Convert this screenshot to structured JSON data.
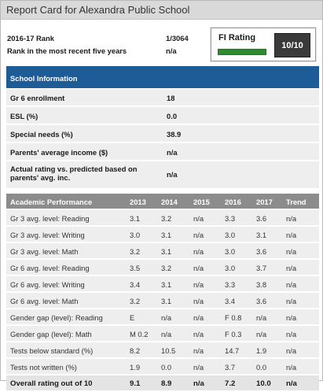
{
  "header": {
    "title": "Report Card for Alexandra Public School"
  },
  "rank": {
    "rank_label": "2016-17 Rank",
    "rank_value": "1/3064",
    "five_year_label": "Rank in the most recent five years",
    "five_year_value": "n/a"
  },
  "fi_rating": {
    "label": "FI Rating",
    "score": "10/10",
    "level": 1.0,
    "bar_color": "#2d8c2d"
  },
  "school_info": {
    "title": "School Information",
    "rows": [
      {
        "label": "Gr 6 enrollment",
        "value": "18"
      },
      {
        "label": "ESL (%)",
        "value": "0.0"
      },
      {
        "label": "Special needs (%)",
        "value": "38.9"
      },
      {
        "label": "Parents' average income ($)",
        "value": "n/a"
      },
      {
        "label": "Actual rating vs. predicted based on parents' avg. inc.",
        "value": "n/a"
      }
    ]
  },
  "academic": {
    "headers": [
      "Academic Performance",
      "2013",
      "2014",
      "2015",
      "2016",
      "2017",
      "Trend"
    ],
    "rows": [
      [
        "Gr 3 avg. level: Reading",
        "3.1",
        "3.2",
        "n/a",
        "3.3",
        "3.6",
        "n/a"
      ],
      [
        "Gr 3 avg. level: Writing",
        "3.0",
        "3.1",
        "n/a",
        "3.0",
        "3.1",
        "n/a"
      ],
      [
        "Gr 3 avg. level: Math",
        "3.2",
        "3.1",
        "n/a",
        "3.0",
        "3.6",
        "n/a"
      ],
      [
        "Gr 6 avg. level: Reading",
        "3.5",
        "3.2",
        "n/a",
        "3.0",
        "3.7",
        "n/a"
      ],
      [
        "Gr 6 avg. level: Writing",
        "3.4",
        "3.1",
        "n/a",
        "3.3",
        "3.8",
        "n/a"
      ],
      [
        "Gr 6 avg. level: Math",
        "3.2",
        "3.1",
        "n/a",
        "3.4",
        "3.6",
        "n/a"
      ],
      [
        "Gender gap (level): Reading",
        "E",
        "n/a",
        "n/a",
        "F 0.8",
        "n/a",
        "n/a"
      ],
      [
        "Gender gap (level): Math",
        "M 0.2",
        "n/a",
        "n/a",
        "F 0.3",
        "n/a",
        "n/a"
      ],
      [
        "Tests below standard (%)",
        "8.2",
        "10.5",
        "n/a",
        "14.7",
        "1.9",
        "n/a"
      ],
      [
        "Tests not written (%)",
        "1.9",
        "0.0",
        "n/a",
        "3.7",
        "0.0",
        "n/a"
      ]
    ],
    "total": [
      "Overall rating out of 10",
      "9.1",
      "8.9",
      "n/a",
      "7.2",
      "10.0",
      "n/a"
    ]
  }
}
